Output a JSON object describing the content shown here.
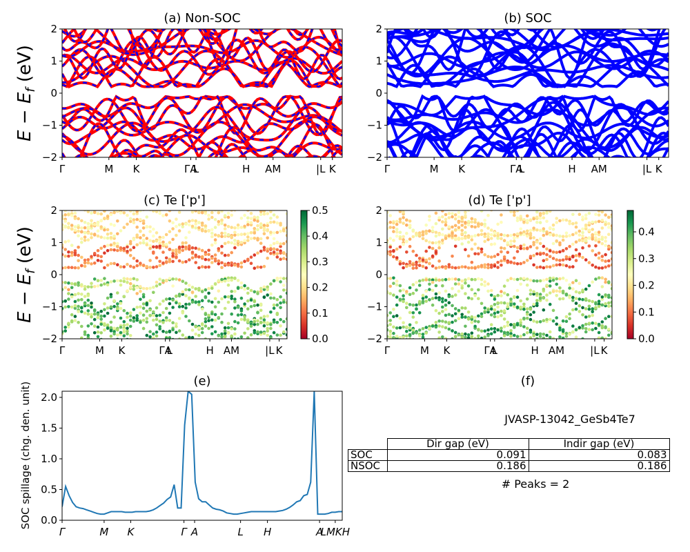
{
  "chart_data": [
    {
      "type": "line",
      "title": "(a) Non-SOC",
      "ylabel": "E − E_f (eV)",
      "ylim": [
        -2,
        2
      ],
      "yticks": [
        "2",
        "1",
        "0",
        "−1",
        "−2"
      ],
      "kpoint_labels": [
        "Γ",
        "M",
        "K",
        "ΓA",
        "L",
        "H",
        "AM",
        "|L",
        "K"
      ],
      "series": [
        {
          "name": "",
          "color": "#ff0000",
          "style": "solid"
        },
        {
          "name": "",
          "color": "#0000ff",
          "style": "dashed"
        }
      ]
    },
    {
      "type": "line",
      "title": "(b) SOC",
      "ylim": [
        -2,
        2
      ],
      "yticks": [
        "2",
        "1",
        "0",
        "−1",
        "−2"
      ],
      "kpoint_labels": [
        "Γ",
        "M",
        "K",
        "ΓA",
        "L",
        "H",
        "AM",
        "|L",
        "K"
      ],
      "series": [
        {
          "name": "",
          "color": "#0000ff",
          "style": "solid"
        }
      ]
    },
    {
      "type": "scatter",
      "title": "(c)  Te ['p']",
      "ylabel": "E − E_f (eV)",
      "ylim": [
        -2,
        2
      ],
      "yticks": [
        "2",
        "1",
        "0",
        "−1",
        "−2"
      ],
      "kpoint_labels": [
        "Γ",
        "M",
        "K",
        "ΓA",
        "L",
        "H",
        "AM",
        "|L",
        "K"
      ],
      "colorbar": {
        "colormap": "RdYlGn",
        "range": [
          0,
          0.5
        ],
        "ticks": [
          "0.5",
          "0.4",
          "0.3",
          "0.2",
          "0.1",
          "0.0"
        ]
      }
    },
    {
      "type": "scatter",
      "title": "(d) Te ['p']",
      "ylim": [
        -2,
        2
      ],
      "yticks": [
        "2",
        "1",
        "0",
        "−1",
        "−2"
      ],
      "kpoint_labels": [
        "Γ",
        "M",
        "K",
        "ΓA",
        "L",
        "H",
        "AM",
        "|L",
        "K"
      ],
      "colorbar": {
        "colormap": "RdYlGn",
        "range": [
          0,
          0.48
        ],
        "ticks": [
          "0.4",
          "0.3",
          "0.2",
          "0.1",
          "0.0"
        ]
      }
    },
    {
      "type": "line",
      "title": "(e)",
      "ylabel": "SOC spillage (chg. den. unit)",
      "ylim": [
        0,
        2.1
      ],
      "yticks": [
        "2.0",
        "1.5",
        "1.0",
        "0.5",
        "0.0"
      ],
      "kpoint_labels": [
        "Γ",
        "M",
        "K",
        "Γ",
        "A",
        "L",
        "H",
        "A",
        "LMKH"
      ],
      "color": "#1f77b4",
      "x": [
        0,
        1,
        2,
        3,
        4,
        5,
        6,
        7,
        8,
        9,
        10,
        11,
        12,
        13,
        14,
        15,
        16,
        17,
        18,
        19,
        20,
        21,
        22,
        23,
        24,
        25,
        26,
        27,
        28,
        29,
        30,
        31,
        32,
        33,
        34,
        35,
        36,
        37,
        38,
        39,
        40,
        41,
        42,
        43,
        44,
        45,
        46,
        47,
        48,
        49,
        50,
        51,
        52,
        53,
        54,
        55,
        56,
        57,
        58,
        59,
        60,
        61,
        62,
        63,
        64,
        65,
        66,
        67,
        68,
        69,
        70,
        71,
        72,
        73,
        74,
        75,
        76,
        77,
        78,
        79,
        80
      ],
      "y": [
        0.22,
        0.55,
        0.4,
        0.29,
        0.22,
        0.2,
        0.19,
        0.17,
        0.15,
        0.13,
        0.11,
        0.1,
        0.1,
        0.12,
        0.14,
        0.14,
        0.14,
        0.14,
        0.13,
        0.13,
        0.13,
        0.14,
        0.14,
        0.14,
        0.14,
        0.15,
        0.17,
        0.2,
        0.24,
        0.28,
        0.34,
        0.38,
        0.58,
        0.2,
        0.2,
        1.55,
        2.1,
        2.05,
        0.62,
        0.35,
        0.3,
        0.3,
        0.25,
        0.2,
        0.18,
        0.17,
        0.15,
        0.12,
        0.11,
        0.1,
        0.1,
        0.11,
        0.12,
        0.13,
        0.14,
        0.14,
        0.14,
        0.14,
        0.14,
        0.14,
        0.14,
        0.14,
        0.15,
        0.16,
        0.18,
        0.21,
        0.25,
        0.3,
        0.32,
        0.4,
        0.42,
        0.62,
        2.1,
        0.1,
        0.1,
        0.1,
        0.11,
        0.13,
        0.13,
        0.14,
        0.14
      ]
    }
  ],
  "panel_f": {
    "title": "(f)",
    "material": "JVASP-13042_GeSb4Te7",
    "table": {
      "col_headers": [
        "Dir gap (eV)",
        "Indir gap (eV)"
      ],
      "rows": [
        {
          "label": "SOC",
          "dir": "0.091",
          "indir": "0.083"
        },
        {
          "label": "NSOC",
          "dir": "0.186",
          "indir": "0.186"
        }
      ]
    },
    "peaks": "# Peaks = 2"
  }
}
